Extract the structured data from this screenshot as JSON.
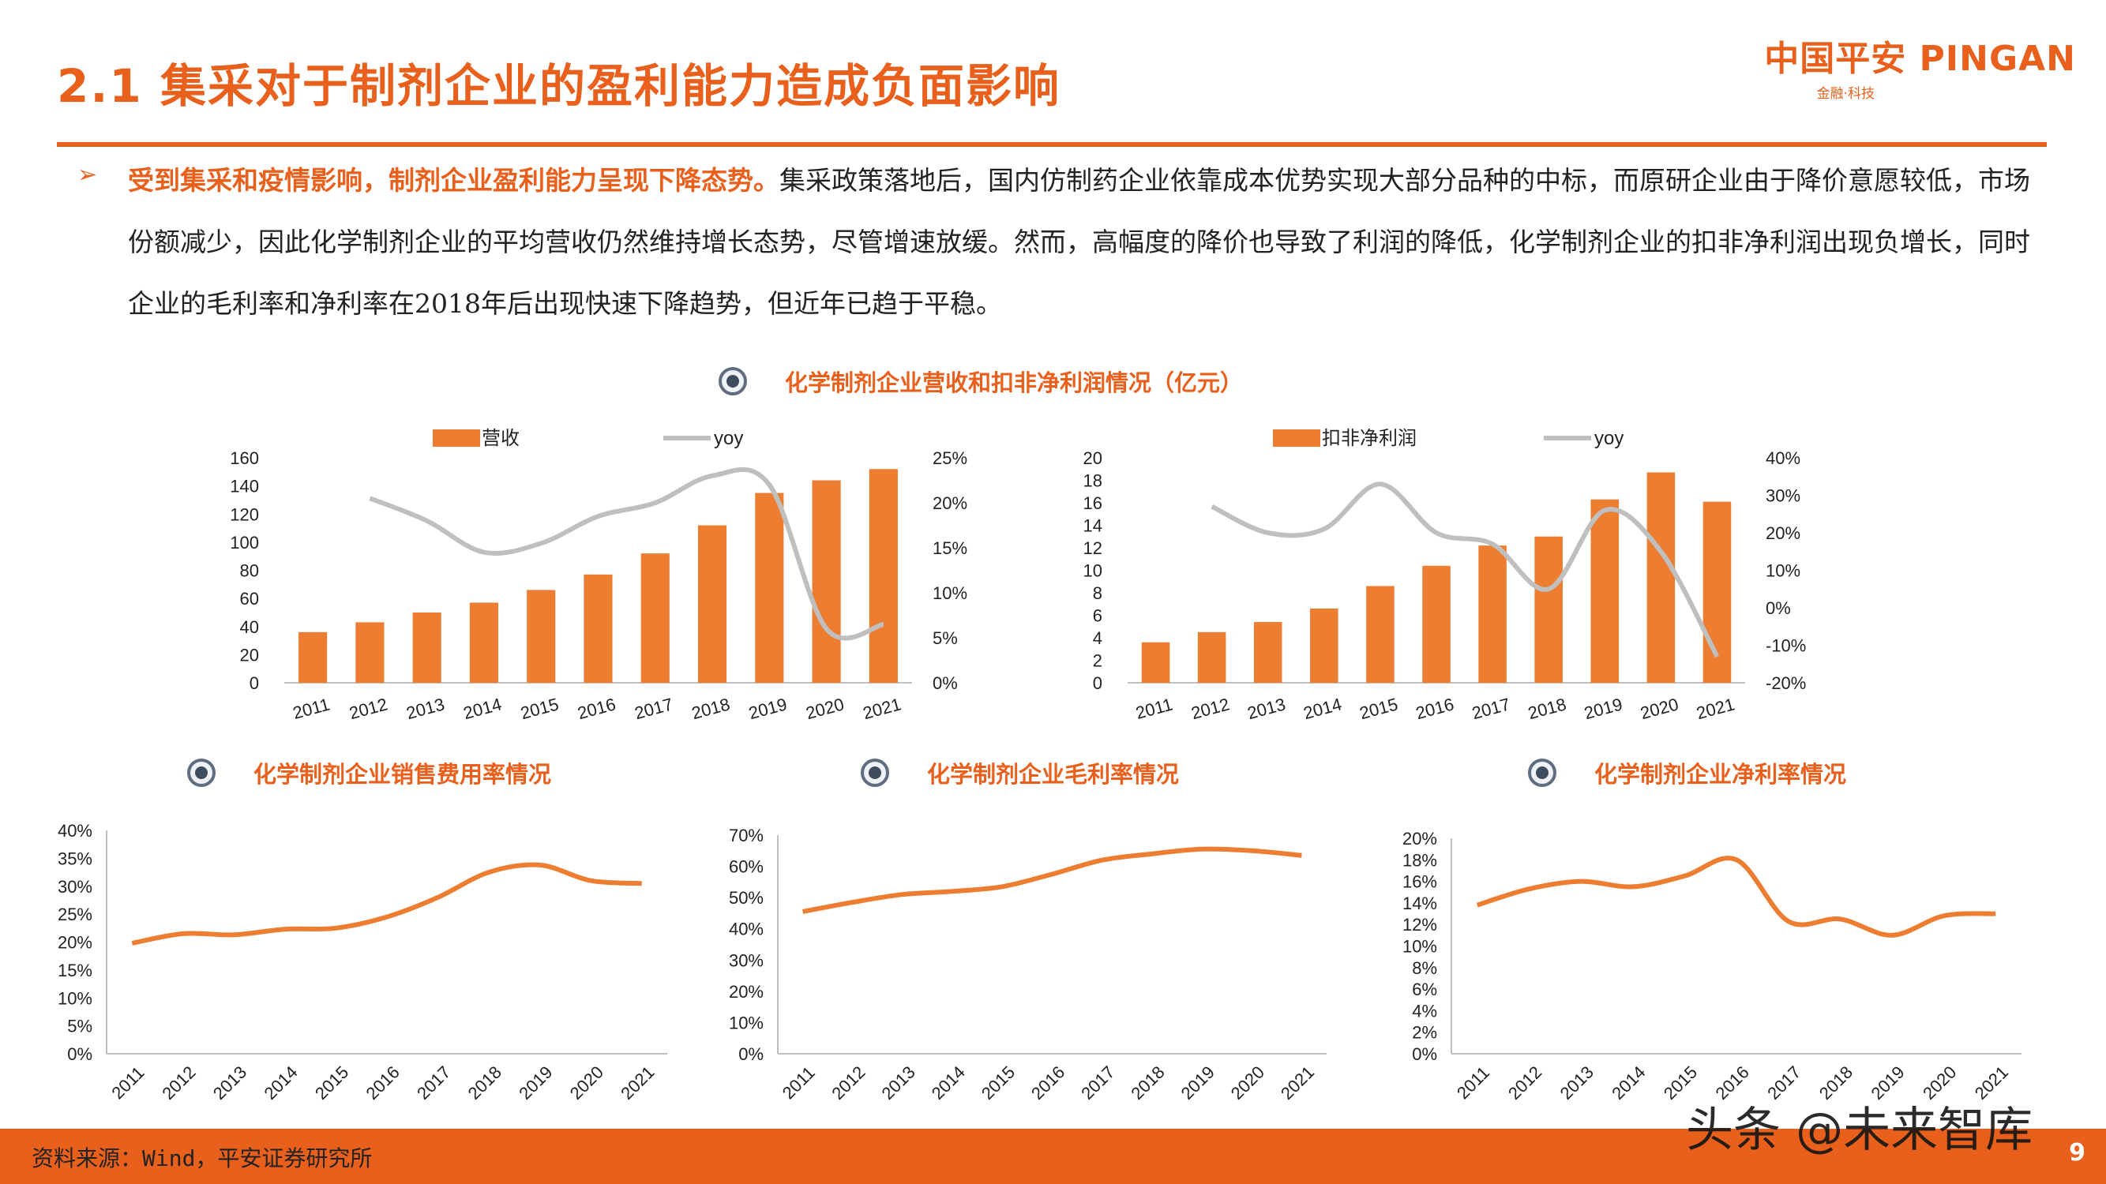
{
  "header": {
    "title": "2.1 集采对于制剂企业的盈利能力造成负面影响",
    "logo_text": "中国平安 PINGAN",
    "logo_sub": "金融·科技"
  },
  "intro": {
    "highlight": "受到集采和疫情影响，制剂企业盈利能力呈现下降态势。",
    "body": "集采政策落地后，国内仿制药企业依靠成本优势实现大部分品种的中标，而原研企业由于降价意愿较低，市场份额减少，因此化学制剂企业的平均营收仍然维持增长态势，尽管增速放缓。然而，高幅度的降价也导致了利润的降低，化学制剂企业的扣非净利润出现负增长，同时企业的毛利率和净利率在2018年后出现快速下降趋势，但近年已趋于平稳。"
  },
  "colors": {
    "accent": "#e8601c",
    "bar": "#ed7d31",
    "yoy": "#bfbfbf",
    "line": "#ed7d31"
  },
  "chart_titles": {
    "top": "化学制剂企业营收和扣非净利润情况（亿元）",
    "selling": "化学制剂企业销售费用率情况",
    "gross": "化学制剂企业毛利率情况",
    "net": "化学制剂企业净利率情况"
  },
  "chart_data": [
    {
      "type": "bar",
      "categories": [
        "2011",
        "2012",
        "2013",
        "2014",
        "2015",
        "2016",
        "2017",
        "2018",
        "2019",
        "2020",
        "2021"
      ],
      "series": [
        {
          "name": "营收",
          "type": "bar",
          "axis": "left",
          "values": [
            36,
            43,
            50,
            57,
            66,
            77,
            92,
            112,
            135,
            144,
            152
          ]
        },
        {
          "name": "yoy",
          "type": "line",
          "axis": "right",
          "values": [
            null,
            20.5,
            18,
            14.5,
            15.5,
            18.5,
            20,
            23,
            22,
            6,
            6.5
          ]
        }
      ],
      "y_left": {
        "min": 0,
        "max": 160,
        "ticks": [
          "0",
          "20",
          "40",
          "60",
          "80",
          "100",
          "120",
          "140",
          "160"
        ]
      },
      "y_right": {
        "min": 0,
        "max": 25,
        "ticks": [
          "0%",
          "5%",
          "10%",
          "15%",
          "20%",
          "25%"
        ]
      },
      "legend": "top"
    },
    {
      "type": "bar",
      "categories": [
        "2011",
        "2012",
        "2013",
        "2014",
        "2015",
        "2016",
        "2017",
        "2018",
        "2019",
        "2020",
        "2021"
      ],
      "series": [
        {
          "name": "扣非净利润",
          "type": "bar",
          "axis": "left",
          "values": [
            3.6,
            4.5,
            5.4,
            6.6,
            8.6,
            10.4,
            12.2,
            13.0,
            16.3,
            18.7,
            16.1
          ]
        },
        {
          "name": "yoy",
          "type": "line",
          "axis": "right",
          "values": [
            null,
            27,
            20,
            21,
            33,
            20,
            17,
            5,
            26,
            15,
            -13
          ]
        }
      ],
      "y_left": {
        "min": 0,
        "max": 20,
        "ticks": [
          "0",
          "2",
          "4",
          "6",
          "8",
          "10",
          "12",
          "14",
          "16",
          "18",
          "20"
        ]
      },
      "y_right": {
        "min": -20,
        "max": 40,
        "ticks": [
          "-20%",
          "-10%",
          "0%",
          "10%",
          "20%",
          "30%",
          "40%"
        ]
      },
      "legend": "top"
    },
    {
      "type": "line",
      "categories": [
        "2011",
        "2012",
        "2013",
        "2014",
        "2015",
        "2016",
        "2017",
        "2018",
        "2019",
        "2020",
        "2021"
      ],
      "values": [
        19.8,
        21.5,
        21.3,
        22.3,
        22.5,
        24.5,
        28,
        32.5,
        33.8,
        31,
        30.5
      ],
      "y": {
        "min": 0,
        "max": 40,
        "ticks": [
          "0%",
          "5%",
          "10%",
          "15%",
          "20%",
          "25%",
          "30%",
          "35%",
          "40%"
        ]
      }
    },
    {
      "type": "line",
      "categories": [
        "2011",
        "2012",
        "2013",
        "2014",
        "2015",
        "2016",
        "2017",
        "2018",
        "2019",
        "2020",
        "2021"
      ],
      "values": [
        45.5,
        48.5,
        51,
        52,
        53.5,
        57.5,
        62,
        64,
        65.5,
        65,
        63.5
      ],
      "y": {
        "min": 0,
        "max": 70,
        "ticks": [
          "0%",
          "10%",
          "20%",
          "30%",
          "40%",
          "50%",
          "60%",
          "70%"
        ]
      }
    },
    {
      "type": "line",
      "categories": [
        "2011",
        "2012",
        "2013",
        "2014",
        "2015",
        "2016",
        "2017",
        "2018",
        "2019",
        "2020",
        "2021"
      ],
      "values": [
        13.8,
        15.3,
        16,
        15.5,
        16.5,
        18,
        12.3,
        12.5,
        11,
        12.8,
        13
      ],
      "y": {
        "min": 0,
        "max": 20,
        "ticks": [
          "0%",
          "2%",
          "4%",
          "6%",
          "8%",
          "10%",
          "12%",
          "14%",
          "16%",
          "18%",
          "20%"
        ]
      }
    }
  ],
  "footer": {
    "source": "资料来源：Wind，平安证券研究所",
    "page": "9"
  },
  "watermark": "头条 @未来智库"
}
